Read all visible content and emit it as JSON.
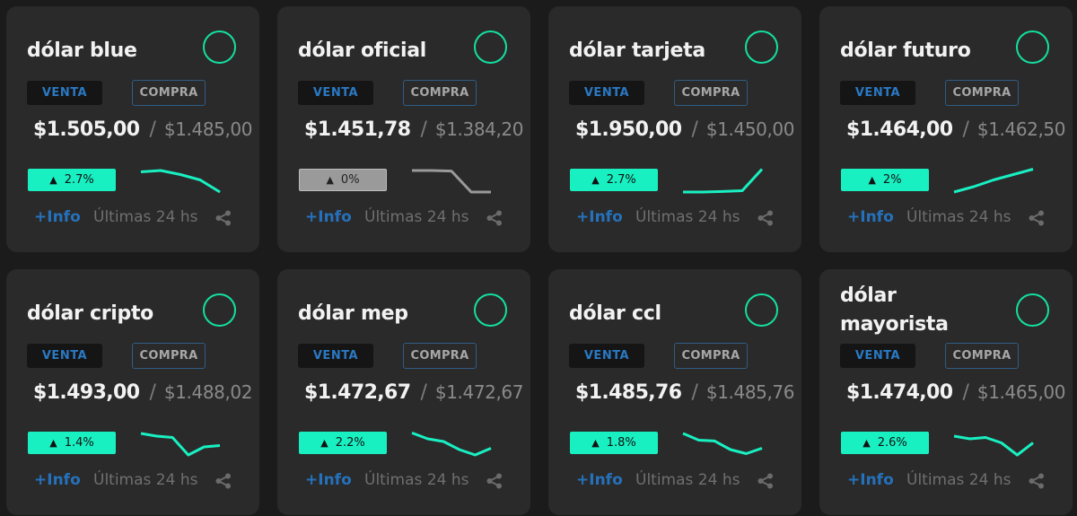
{
  "common": {
    "venta_label": "VENTA",
    "compra_label": "COMPRA",
    "info_label": "+Info",
    "last_label": "Últimas 24 hs",
    "accent_color": "#19f0c2",
    "flat_color": "#9a9a9a"
  },
  "cards": [
    {
      "title": "dólar blue",
      "venta": "$1.505,00",
      "compra": "$1.485,00",
      "change": "2.7%",
      "trend": "up",
      "spark": [
        0.85,
        0.9,
        0.75,
        0.55,
        0.1
      ]
    },
    {
      "title": "dólar oficial",
      "venta": "$1.451,78",
      "compra": "$1.384,20",
      "change": "0%",
      "trend": "flat",
      "spark": [
        0.9,
        0.9,
        0.88,
        0.1,
        0.1
      ]
    },
    {
      "title": "dólar tarjeta",
      "venta": "$1.950,00",
      "compra": "$1.450,00",
      "change": "2.7%",
      "trend": "up",
      "spark": [
        0.1,
        0.1,
        0.12,
        0.15,
        0.95
      ]
    },
    {
      "title": "dólar futuro",
      "venta": "$1.464,00",
      "compra": "$1.462,50",
      "change": "2%",
      "trend": "up",
      "spark": [
        0.1,
        0.3,
        0.55,
        0.75,
        0.95
      ]
    },
    {
      "title": "dólar cripto",
      "venta": "$1.493,00",
      "compra": "$1.488,02",
      "change": "1.4%",
      "trend": "up",
      "spark": [
        0.9,
        0.8,
        0.75,
        0.1,
        0.4,
        0.45
      ]
    },
    {
      "title": "dólar mep",
      "venta": "$1.472,67",
      "compra": "$1.472,67",
      "change": "2.2%",
      "trend": "up",
      "spark": [
        0.92,
        0.7,
        0.6,
        0.3,
        0.1,
        0.35
      ]
    },
    {
      "title": "dólar ccl",
      "venta": "$1.485,76",
      "compra": "$1.485,76",
      "change": "1.8%",
      "trend": "up",
      "spark": [
        0.9,
        0.65,
        0.62,
        0.3,
        0.15,
        0.35
      ]
    },
    {
      "title": "dólar mayorista",
      "venta": "$1.474,00",
      "compra": "$1.465,00",
      "change": "2.6%",
      "trend": "up",
      "spark": [
        0.8,
        0.7,
        0.75,
        0.55,
        0.1,
        0.55
      ]
    }
  ]
}
